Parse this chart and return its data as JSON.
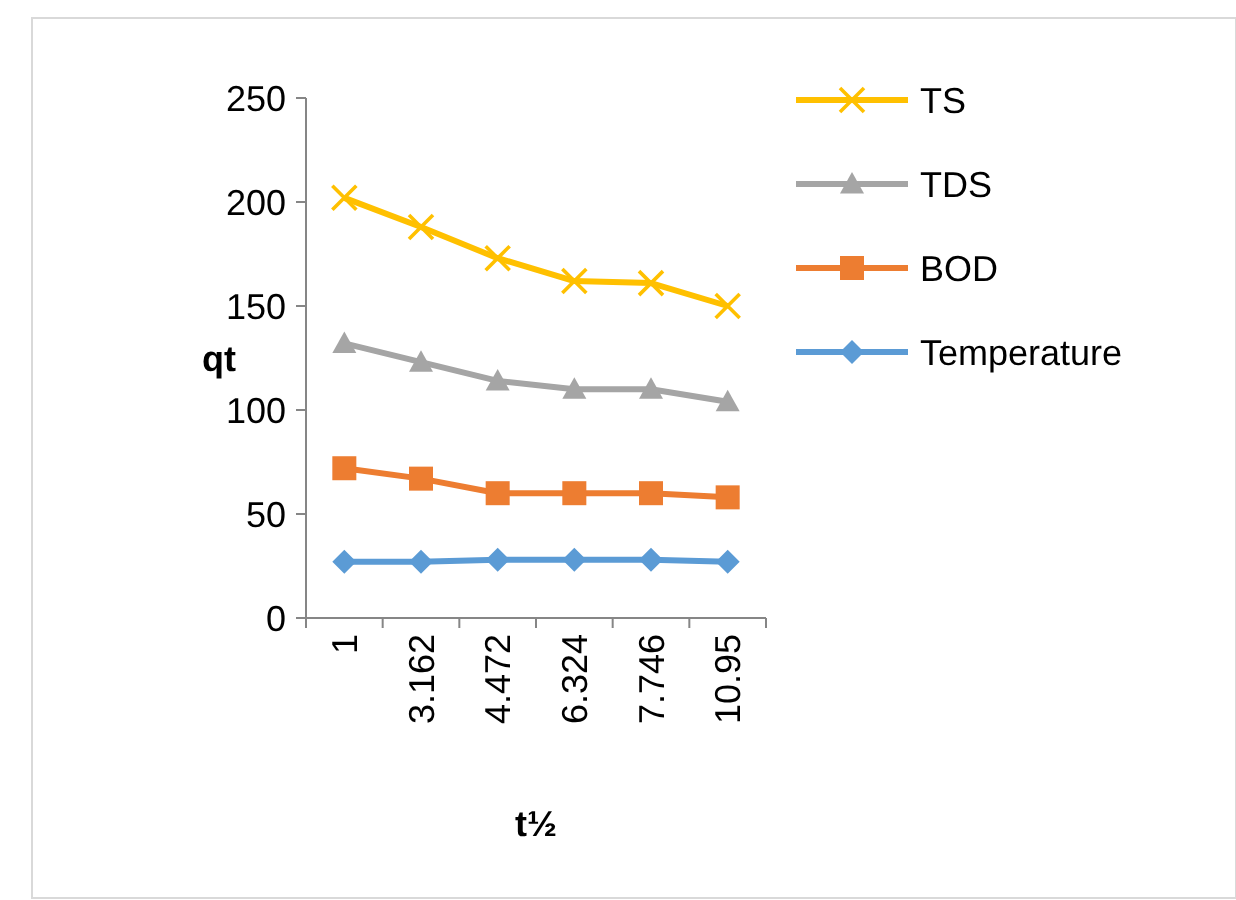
{
  "chart_data": {
    "type": "line",
    "xlabel": "t½",
    "ylabel": "qt",
    "categories": [
      "1",
      "3.162",
      "4.472",
      "6.324",
      "7.746",
      "10.95"
    ],
    "ylim": [
      0,
      250
    ],
    "yticks": [
      0,
      50,
      100,
      150,
      200,
      250
    ],
    "grid": false,
    "legend": "right",
    "series": [
      {
        "name": "TS",
        "color": "#ffc000",
        "marker": "cross",
        "values": [
          202,
          188,
          173,
          162,
          161,
          150
        ]
      },
      {
        "name": "TDS",
        "color": "#a5a5a5",
        "marker": "triangle",
        "values": [
          132,
          123,
          114,
          110,
          110,
          104
        ]
      },
      {
        "name": "BOD",
        "color": "#ed7d31",
        "marker": "square",
        "values": [
          72,
          67,
          60,
          60,
          60,
          58
        ]
      },
      {
        "name": "Temperature",
        "color": "#5b9bd5",
        "marker": "diamond",
        "values": [
          27,
          27,
          28,
          28,
          28,
          27
        ]
      }
    ]
  }
}
